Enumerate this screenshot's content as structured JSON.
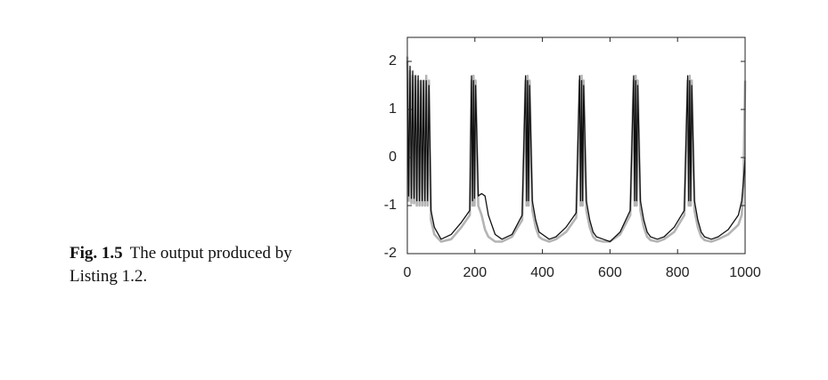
{
  "caption": {
    "label": "Fig. 1.5",
    "text": "The output produced by Listing 1.2."
  },
  "chart_data": {
    "type": "line",
    "x": [
      0,
      4,
      8,
      12,
      16,
      20,
      24,
      28,
      32,
      36,
      40,
      44,
      48,
      52,
      56,
      60,
      64,
      70,
      80,
      100,
      130,
      160,
      185,
      190,
      193,
      196,
      199,
      202,
      210,
      220,
      230,
      240,
      260,
      280,
      310,
      340,
      350,
      353,
      356,
      359,
      362,
      370,
      380,
      390,
      400,
      420,
      440,
      470,
      500,
      510,
      513,
      516,
      519,
      522,
      530,
      540,
      550,
      560,
      580,
      600,
      630,
      660,
      670,
      673,
      676,
      679,
      682,
      690,
      700,
      710,
      720,
      740,
      760,
      790,
      820,
      830,
      833,
      836,
      839,
      842,
      850,
      860,
      870,
      880,
      900,
      920,
      950,
      980,
      990,
      995,
      1000
    ],
    "series": [
      {
        "color": "#b4b4b4",
        "values": [
          2.1,
          -0.9,
          1.8,
          -0.95,
          1.7,
          -0.95,
          1.7,
          -1.0,
          1.6,
          -1.0,
          1.6,
          -1.0,
          1.6,
          -1.0,
          1.7,
          -1.0,
          1.6,
          -1.3,
          -1.6,
          -1.75,
          -1.7,
          -1.45,
          -1.2,
          1.6,
          -1.0,
          1.7,
          -1.0,
          1.6,
          -1.0,
          -1.2,
          -1.5,
          -1.65,
          -1.75,
          -1.75,
          -1.65,
          -1.3,
          1.6,
          -1.0,
          1.7,
          -1.0,
          1.6,
          -1.1,
          -1.45,
          -1.65,
          -1.7,
          -1.75,
          -1.7,
          -1.55,
          -1.25,
          1.6,
          -1.0,
          1.7,
          -1.0,
          1.6,
          -1.1,
          -1.45,
          -1.65,
          -1.72,
          -1.75,
          -1.75,
          -1.6,
          -1.2,
          1.6,
          -1.0,
          1.7,
          -1.0,
          1.6,
          -1.1,
          -1.45,
          -1.65,
          -1.72,
          -1.75,
          -1.7,
          -1.55,
          -1.2,
          1.6,
          -1.0,
          1.7,
          -1.0,
          1.6,
          -1.1,
          -1.45,
          -1.65,
          -1.72,
          -1.75,
          -1.7,
          -1.6,
          -1.4,
          -1.2,
          -0.6,
          1.6
        ]
      },
      {
        "color": "#111111",
        "values": [
          2.0,
          -0.8,
          1.9,
          -0.85,
          1.8,
          -0.85,
          1.7,
          -0.9,
          1.7,
          -0.9,
          1.6,
          -0.9,
          1.6,
          -0.9,
          1.6,
          -0.9,
          1.5,
          -1.1,
          -1.45,
          -1.7,
          -1.6,
          -1.35,
          -1.1,
          1.7,
          -0.9,
          1.6,
          -0.85,
          1.5,
          -0.8,
          -0.75,
          -0.8,
          -1.2,
          -1.6,
          -1.7,
          -1.6,
          -1.2,
          1.7,
          -0.9,
          1.6,
          -0.9,
          1.5,
          -0.9,
          -1.3,
          -1.55,
          -1.6,
          -1.7,
          -1.65,
          -1.45,
          -1.15,
          1.7,
          -0.9,
          1.6,
          -0.9,
          1.5,
          -0.9,
          -1.3,
          -1.55,
          -1.65,
          -1.7,
          -1.75,
          -1.55,
          -1.1,
          1.7,
          -0.9,
          1.6,
          -0.9,
          1.5,
          -0.9,
          -1.3,
          -1.55,
          -1.65,
          -1.7,
          -1.65,
          -1.45,
          -1.1,
          1.7,
          -0.9,
          1.6,
          -0.9,
          1.5,
          -0.9,
          -1.3,
          -1.55,
          -1.65,
          -1.7,
          -1.65,
          -1.5,
          -1.2,
          -0.9,
          -0.5,
          0.0
        ]
      }
    ],
    "xlim": [
      0,
      1000
    ],
    "ylim": [
      -2,
      2.5
    ],
    "xticks": [
      0,
      200,
      400,
      600,
      800,
      1000
    ],
    "yticks": [
      -2,
      -1,
      0,
      1,
      2
    ]
  }
}
